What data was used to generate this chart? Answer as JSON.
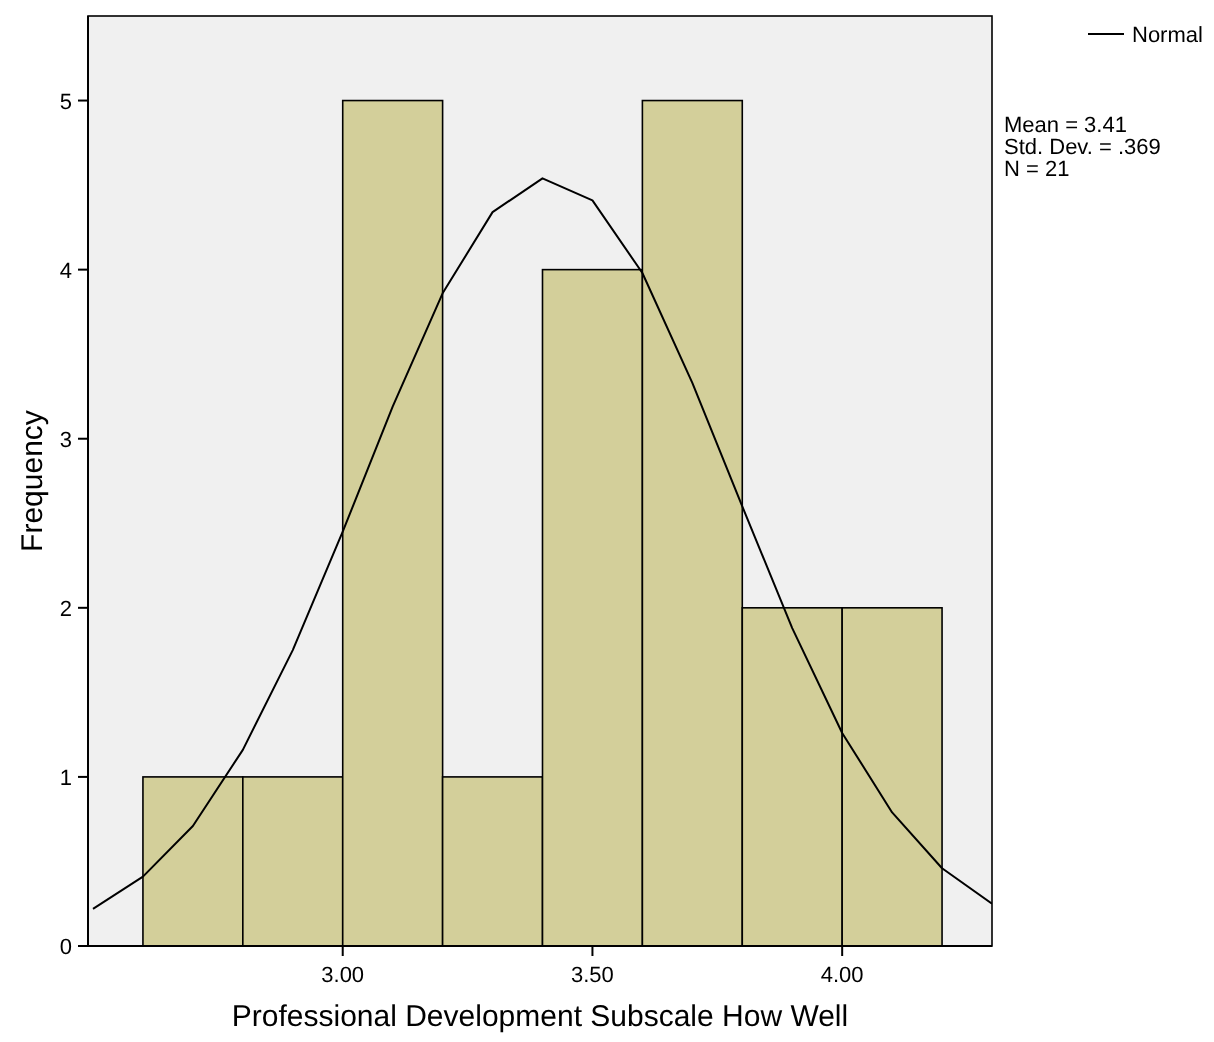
{
  "chart_data": {
    "type": "histogram",
    "xlabel": "Professional Development Subscale How Well",
    "ylabel": "Frequency",
    "bins": [
      2.6,
      2.8,
      3.0,
      3.2,
      3.4,
      3.6,
      3.8,
      4.0,
      4.2
    ],
    "values": [
      1,
      1,
      5,
      1,
      4,
      5,
      2,
      2
    ],
    "color": "#d3cf9a",
    "series": [
      {
        "name": "Normal",
        "type": "line",
        "color": "#000000",
        "x": [
          2.5,
          2.6,
          2.7,
          2.8,
          2.9,
          3.0,
          3.1,
          3.2,
          3.3,
          3.4,
          3.5,
          3.6,
          3.7,
          3.8,
          3.9,
          4.0,
          4.1,
          4.2,
          4.3
        ],
        "values": [
          0.22,
          0.41,
          0.71,
          1.16,
          1.75,
          2.45,
          3.19,
          3.86,
          4.34,
          4.54,
          4.41,
          3.98,
          3.33,
          2.6,
          1.88,
          1.26,
          0.79,
          0.46,
          0.25
        ]
      }
    ],
    "xlim": [
      2.49,
      4.3
    ],
    "ylim": [
      0,
      5.5
    ],
    "xticks": [
      {
        "value": 3,
        "label": "3.00"
      },
      {
        "value": 3.5,
        "label": "3.50"
      },
      {
        "value": 4,
        "label": "4.00"
      }
    ],
    "yticks": [
      0,
      1,
      2,
      3,
      4,
      5
    ],
    "legend": "top right",
    "grid": false,
    "marker": "none",
    "line_style": "solid",
    "annotations": [
      "Mean = 3.41",
      "Std. Dev. = .369",
      "N = 21"
    ]
  }
}
